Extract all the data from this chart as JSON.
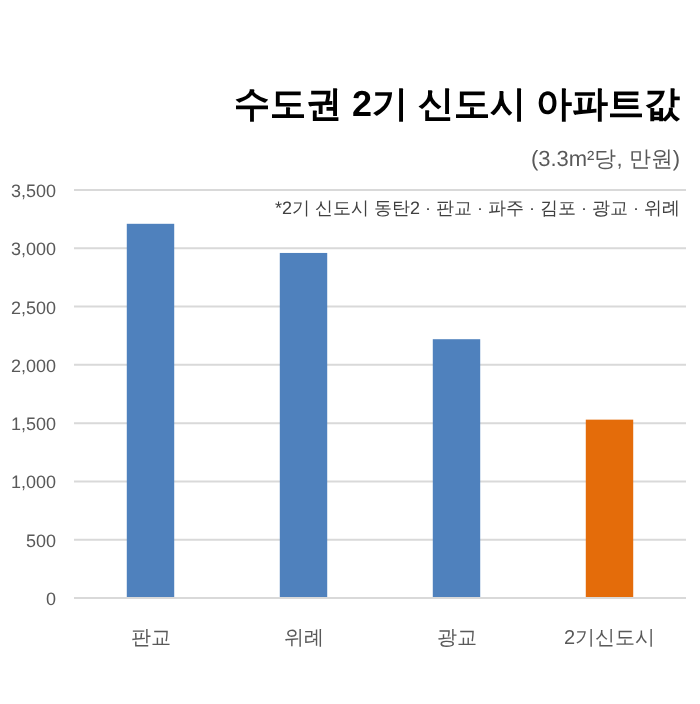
{
  "chart_data": {
    "type": "bar",
    "title": "수도권 2기 신도시 아파트값",
    "subtitle": "(3.3m²당, 만원)",
    "annotations": [
      "*2기 신도시 동탄2 · 판교 · 파주 · 김포 · 광교 · 위례"
    ],
    "categories": [
      "판교",
      "위례",
      "광교",
      "2기신도시"
    ],
    "values": [
      3210,
      2960,
      2220,
      1530
    ],
    "colors": [
      "#4f81bd",
      "#4f81bd",
      "#4f81bd",
      "#e46c0a"
    ],
    "ylim": [
      0,
      3500
    ],
    "yticks": [
      {
        "value": 0,
        "label": "0"
      },
      {
        "value": 500,
        "label": "500"
      },
      {
        "value": 1000,
        "label": "1,000"
      },
      {
        "value": 1500,
        "label": "1,500"
      },
      {
        "value": 2000,
        "label": "2,000"
      },
      {
        "value": 2500,
        "label": "2,500"
      },
      {
        "value": 3000,
        "label": "3,000"
      },
      {
        "value": 3500,
        "label": "3,500"
      }
    ],
    "grid": "y"
  }
}
